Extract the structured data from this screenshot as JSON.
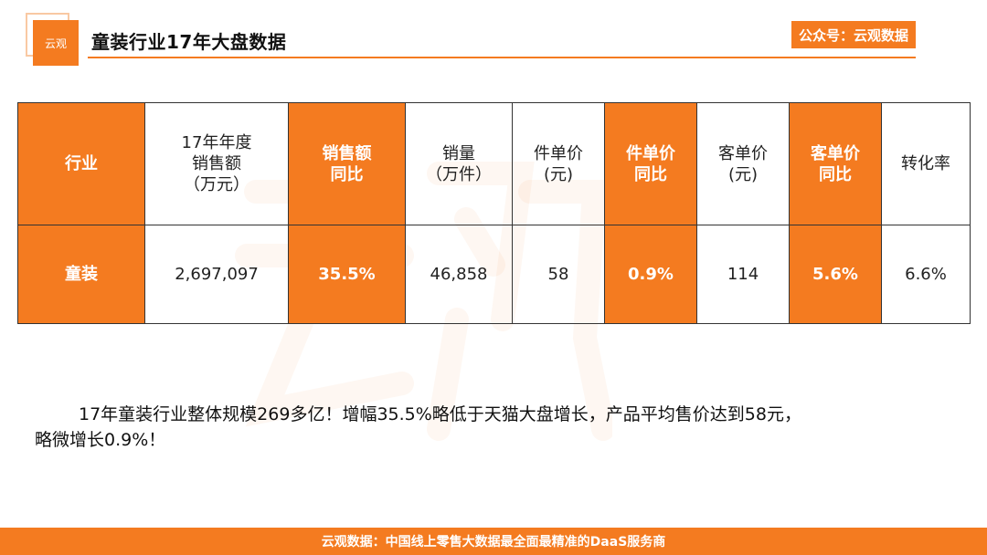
{
  "header": {
    "logo_text": "云观",
    "title": "童装行业17年大盘数据",
    "account": "公众号：云观数据"
  },
  "table": {
    "headers": [
      "行业",
      "17年年度\n销售额\n（万元）",
      "销售额\n同比",
      "销量\n（万件）",
      "件单价\n(元)",
      "件单价\n同比",
      "客单价\n(元)",
      "客单价\n同比",
      "转化率"
    ],
    "rows": [
      [
        "童装",
        "2,697,097",
        "35.5%",
        "46,858",
        "58",
        "0.9%",
        "114",
        "5.6%",
        "6.6%"
      ]
    ]
  },
  "summary": "17年童装行业整体规模269多亿！增幅35.5%略低于天猫大盘增长，产品平均售价达到58元，\n略微增长0.9%！",
  "footer": "云观数据：中国线上零售大数据最全面最精准的DaaS服务商",
  "colors": {
    "accent": "#f47b20"
  }
}
